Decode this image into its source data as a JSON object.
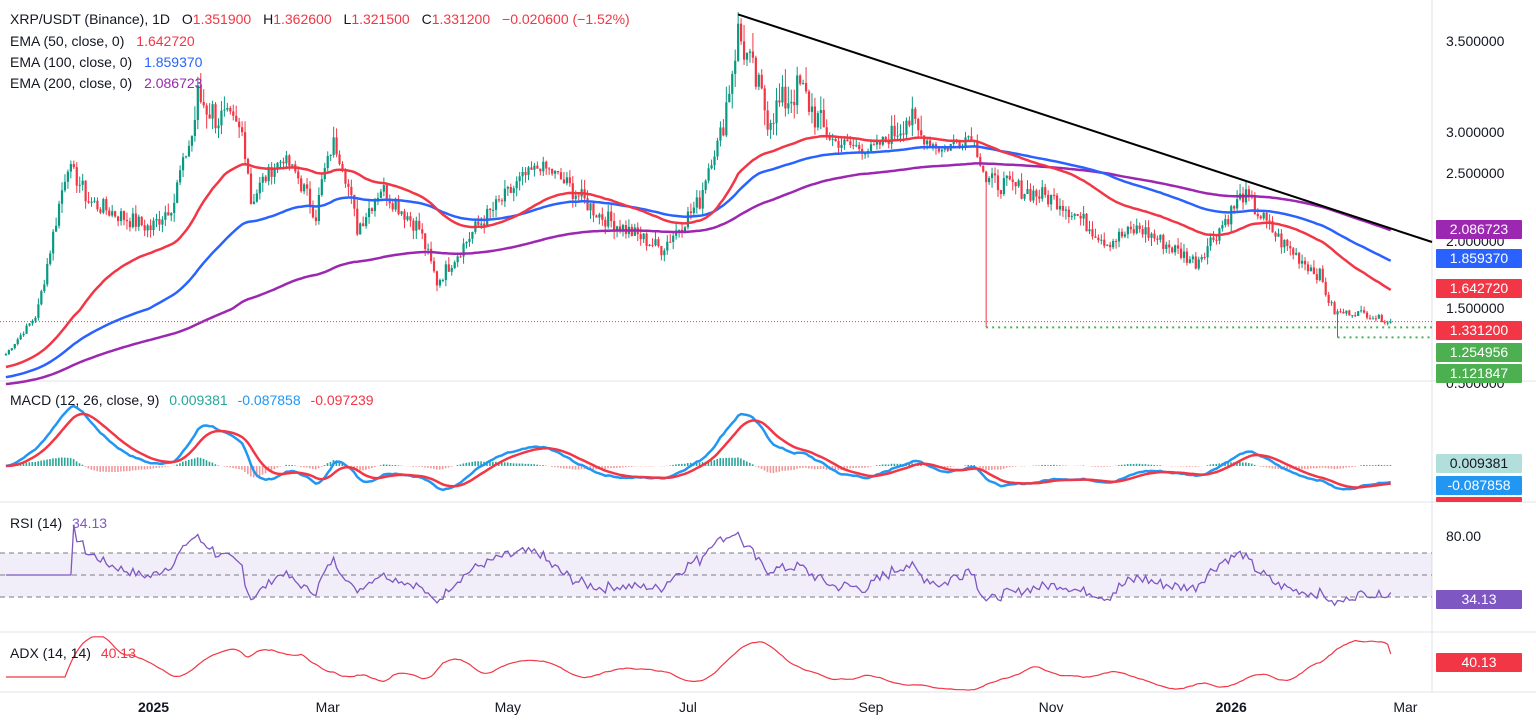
{
  "header": {
    "symbol": "XRP/USDT (Binance), 1D",
    "open_label": "O",
    "open": "1.351900",
    "high_label": "H",
    "high": "1.362600",
    "low_label": "L",
    "low": "1.321500",
    "close_label": "C",
    "close": "1.331200",
    "change": "−0.020600 (−1.52%)"
  },
  "indicators": {
    "ema50": {
      "label": "EMA (50, close, 0)",
      "value": "1.642720",
      "color": "#f23645"
    },
    "ema100": {
      "label": "EMA (100, close, 0)",
      "value": "1.859370",
      "color": "#2962ff"
    },
    "ema200": {
      "label": "EMA (200, close, 0)",
      "value": "2.086723",
      "color": "#9c27b0"
    },
    "macd": {
      "label": "MACD (12, 26, close, 9)",
      "hist": "0.009381",
      "macd": "-0.087858",
      "signal": "-0.097239"
    },
    "rsi": {
      "label": "RSI (14)",
      "value": "34.13"
    },
    "adx": {
      "label": "ADX (14, 14)",
      "value": "40.13"
    }
  },
  "price_tags": {
    "ema200": "2.086723",
    "ema100": "1.859370",
    "ema50": "1.642720",
    "last": "1.331200",
    "support1": "1.254956",
    "support2": "1.121847",
    "macd_hist": "0.009381",
    "macd_line": "-0.087858",
    "rsi": "34.13",
    "adx": "40.13"
  },
  "colors": {
    "up": "#089981",
    "down": "#f23645",
    "ema50": "#f23645",
    "ema100": "#2962ff",
    "ema200": "#9c27b0",
    "support": "#4caf50",
    "rsi": "#7e57c2",
    "adx": "#f23645",
    "macd": "#2196f3",
    "signal": "#f23645",
    "trendline": "#000000"
  },
  "chart_data": {
    "type": "candlestick",
    "title": "XRP/USDT (Binance), 1D",
    "y_ticks": [
      "3.500000",
      "3.000000",
      "2.500000",
      "2.000000",
      "1.500000",
      "0.500000"
    ],
    "y_tick_values": [
      3.5,
      3.0,
      2.5,
      2.0,
      1.5,
      0.5
    ],
    "x_ticks": [
      {
        "label": "2025",
        "date": "2025-01-01",
        "bold": true
      },
      {
        "label": "Mar",
        "date": "2025-03-01",
        "bold": false
      },
      {
        "label": "May",
        "date": "2025-05-01",
        "bold": false
      },
      {
        "label": "Jul",
        "date": "2025-07-01",
        "bold": false
      },
      {
        "label": "Sep",
        "date": "2025-09-01",
        "bold": false
      },
      {
        "label": "Nov",
        "date": "2025-11-01",
        "bold": false
      },
      {
        "label": "2026",
        "date": "2026-01-01",
        "bold": true
      },
      {
        "label": "Mar",
        "date": "2026-03-01",
        "bold": false
      }
    ],
    "x_range": [
      "2024-11-10",
      "2026-03-10"
    ],
    "price_keypoints": [
      [
        "2024-11-12",
        0.9
      ],
      [
        "2024-11-22",
        1.4
      ],
      [
        "2024-12-03",
        2.6
      ],
      [
        "2024-12-10",
        2.3
      ],
      [
        "2024-12-20",
        2.2
      ],
      [
        "2024-12-31",
        2.1
      ],
      [
        "2025-01-08",
        2.3
      ],
      [
        "2025-01-16",
        3.2
      ],
      [
        "2025-01-22",
        3.1
      ],
      [
        "2025-01-31",
        3.0
      ],
      [
        "2025-02-03",
        2.3
      ],
      [
        "2025-02-14",
        2.7
      ],
      [
        "2025-02-25",
        2.2
      ],
      [
        "2025-03-03",
        2.9
      ],
      [
        "2025-03-11",
        2.1
      ],
      [
        "2025-03-19",
        2.4
      ],
      [
        "2025-04-01",
        2.1
      ],
      [
        "2025-04-07",
        1.7
      ],
      [
        "2025-04-20",
        2.1
      ],
      [
        "2025-05-12",
        2.6
      ],
      [
        "2025-06-01",
        2.2
      ],
      [
        "2025-06-22",
        1.95
      ],
      [
        "2025-07-05",
        2.3
      ],
      [
        "2025-07-18",
        3.55
      ],
      [
        "2025-07-28",
        3.1
      ],
      [
        "2025-08-08",
        3.25
      ],
      [
        "2025-08-20",
        2.9
      ],
      [
        "2025-09-01",
        2.8
      ],
      [
        "2025-09-13",
        3.1
      ],
      [
        "2025-09-25",
        2.8
      ],
      [
        "2025-10-05",
        3.0
      ],
      [
        "2025-10-10",
        2.45
      ],
      [
        "2025-10-20",
        2.4
      ],
      [
        "2025-11-04",
        2.3
      ],
      [
        "2025-11-20",
        2.0
      ],
      [
        "2025-12-01",
        2.1
      ],
      [
        "2025-12-20",
        1.85
      ],
      [
        "2026-01-05",
        2.35
      ],
      [
        "2026-01-18",
        2.0
      ],
      [
        "2026-01-31",
        1.75
      ],
      [
        "2026-02-05",
        1.45
      ],
      [
        "2026-02-14",
        1.45
      ],
      [
        "2026-02-24",
        1.33
      ]
    ],
    "trendline": [
      [
        "2025-07-18",
        3.65
      ],
      [
        "2026-03-10",
        2.0
      ]
    ],
    "support_lines": [
      {
        "value": 1.254956,
        "from": "2025-10-10"
      },
      {
        "value": 1.121847,
        "from": "2026-02-06"
      }
    ],
    "last_price": 1.3312,
    "rsi_levels": [
      80.0,
      50.0,
      30.0
    ],
    "rsi_ticks": [
      "80.00"
    ],
    "current": {
      "ema50": 1.64272,
      "ema100": 1.85937,
      "ema200": 2.086723,
      "rsi": 34.13,
      "adx": 40.13
    }
  }
}
